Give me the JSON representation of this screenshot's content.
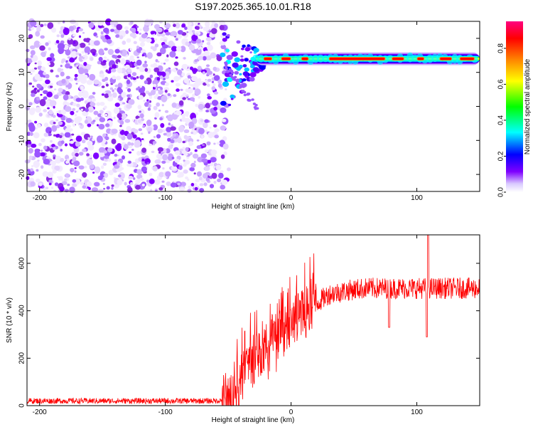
{
  "figure": {
    "title": "S197.2025.365.10.01.R18"
  },
  "chart_data": [
    {
      "type": "heatmap",
      "title": "S197.2025.365.10.01.R18",
      "xlabel": "Height of straight line (km)",
      "ylabel": "Frequency (Hz)",
      "xlim": [
        -210,
        150
      ],
      "ylim": [
        -25,
        25
      ],
      "xticks": [
        -200,
        -100,
        0,
        100
      ],
      "yticks": [
        -20,
        -10,
        0,
        10,
        20
      ],
      "colorbar": {
        "label": "Normalized spectral amplitude",
        "range": [
          0.0,
          0.95
        ],
        "ticks": [
          0.0,
          0.2,
          0.4,
          0.6,
          0.8
        ],
        "tick_labels": [
          "0.0",
          "0.2",
          "0.4",
          "0.6",
          "0.8"
        ],
        "colormap": [
          "#ffffff",
          "#7f00ff",
          "#0000ff",
          "#00ffff",
          "#00ff00",
          "#ffff00",
          "#ff8000",
          "#ff0000",
          "#ff0080"
        ]
      },
      "features": {
        "noise_region_x": [
          -210,
          -55
        ],
        "onset_x": -55,
        "carrier_frequency_hz": 14,
        "carrier_x": [
          -20,
          150
        ],
        "carrier_peak_amplitude": 0.9
      }
    },
    {
      "type": "line",
      "xlabel": "Height of straight line (km)",
      "ylabel": "SNR (10 * v/v)",
      "xlim": [
        -210,
        150
      ],
      "ylim": [
        0,
        720
      ],
      "xticks": [
        -200,
        -100,
        0,
        100
      ],
      "yticks": [
        0,
        200,
        400,
        600
      ],
      "series": [
        {
          "name": "SNR",
          "color": "#ff0000",
          "x": [
            -210,
            -180,
            -150,
            -120,
            -90,
            -60,
            -50,
            -45,
            -40,
            -35,
            -30,
            -25,
            -20,
            -15,
            -10,
            -5,
            0,
            5,
            10,
            15,
            20,
            25,
            30,
            40,
            50,
            60,
            70,
            80,
            90,
            100,
            108,
            110,
            120,
            130,
            140,
            150
          ],
          "y": [
            20,
            20,
            20,
            20,
            20,
            20,
            25,
            50,
            100,
            150,
            190,
            220,
            250,
            270,
            290,
            310,
            340,
            370,
            390,
            410,
            430,
            450,
            470,
            480,
            490,
            495,
            495,
            495,
            495,
            495,
            495,
            495,
            495,
            495,
            495,
            495
          ]
        }
      ],
      "annotations": [
        {
          "x": 78,
          "y": 330,
          "note": "sharp dip"
        },
        {
          "x": 108,
          "y": 290,
          "note": "sharp dip"
        },
        {
          "x": 109,
          "y": 720,
          "note": "spike"
        }
      ]
    }
  ]
}
